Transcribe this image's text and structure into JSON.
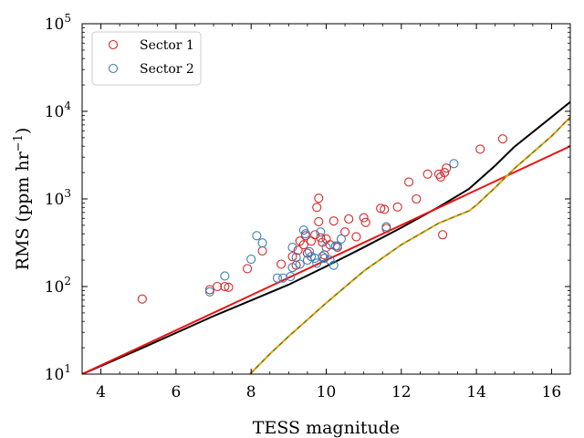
{
  "chart_data": {
    "type": "scatter",
    "title": "",
    "xlabel": "TESS magnitude",
    "ylabel": "RMS (ppm hr",
    "ylabel_sup": "−1",
    "ylabel_close": ")",
    "xlim": [
      3.5,
      16.5
    ],
    "ylim": [
      10,
      100000
    ],
    "yscale": "log",
    "grid": false,
    "legend_position": "top-left",
    "x_ticks": [
      {
        "value": 4,
        "label": "4"
      },
      {
        "value": 6,
        "label": "6"
      },
      {
        "value": 8,
        "label": "8"
      },
      {
        "value": 10,
        "label": "10"
      },
      {
        "value": 12,
        "label": "12"
      },
      {
        "value": 14,
        "label": "14"
      },
      {
        "value": 16,
        "label": "16"
      }
    ],
    "y_ticks": [
      {
        "value": 10,
        "base": "10",
        "exp": "1"
      },
      {
        "value": 100,
        "base": "10",
        "exp": "2"
      },
      {
        "value": 1000,
        "base": "10",
        "exp": "3"
      },
      {
        "value": 10000,
        "base": "10",
        "exp": "4"
      },
      {
        "value": 100000,
        "base": "10",
        "exp": "5"
      }
    ],
    "series": [
      {
        "name": "Sector 1",
        "color": "#d62728",
        "points": [
          [
            5.1,
            72
          ],
          [
            6.9,
            92
          ],
          [
            7.1,
            100
          ],
          [
            7.3,
            100
          ],
          [
            7.4,
            98
          ],
          [
            7.9,
            160
          ],
          [
            8.3,
            255
          ],
          [
            8.8,
            180
          ],
          [
            9.1,
            220
          ],
          [
            9.2,
            175
          ],
          [
            9.25,
            260
          ],
          [
            9.3,
            330
          ],
          [
            9.4,
            300
          ],
          [
            9.45,
            380
          ],
          [
            9.5,
            240
          ],
          [
            9.6,
            330
          ],
          [
            9.7,
            390
          ],
          [
            9.75,
            800
          ],
          [
            9.8,
            1020
          ],
          [
            9.8,
            550
          ],
          [
            9.85,
            360
          ],
          [
            9.9,
            320
          ],
          [
            9.95,
            230
          ],
          [
            10.0,
            350
          ],
          [
            10.1,
            300
          ],
          [
            10.2,
            560
          ],
          [
            10.3,
            280
          ],
          [
            10.5,
            420
          ],
          [
            10.6,
            590
          ],
          [
            10.8,
            370
          ],
          [
            11.0,
            610
          ],
          [
            11.05,
            540
          ],
          [
            11.45,
            780
          ],
          [
            11.55,
            760
          ],
          [
            11.6,
            460
          ],
          [
            11.9,
            810
          ],
          [
            12.2,
            1560
          ],
          [
            12.4,
            1000
          ],
          [
            12.7,
            1920
          ],
          [
            13.0,
            1920
          ],
          [
            13.05,
            1780
          ],
          [
            13.1,
            390
          ],
          [
            13.15,
            2000
          ],
          [
            13.2,
            2250
          ],
          [
            14.1,
            3700
          ],
          [
            14.7,
            4850
          ]
        ]
      },
      {
        "name": "Sector 2",
        "color": "#3a7fb8",
        "points": [
          [
            6.9,
            87
          ],
          [
            7.3,
            132
          ],
          [
            8.0,
            205
          ],
          [
            8.15,
            380
          ],
          [
            8.3,
            315
          ],
          [
            8.7,
            125
          ],
          [
            8.85,
            125
          ],
          [
            9.05,
            130
          ],
          [
            9.1,
            165
          ],
          [
            9.1,
            280
          ],
          [
            9.2,
            215
          ],
          [
            9.3,
            180
          ],
          [
            9.4,
            440
          ],
          [
            9.45,
            400
          ],
          [
            9.5,
            200
          ],
          [
            9.55,
            250
          ],
          [
            9.6,
            220
          ],
          [
            9.7,
            210
          ],
          [
            9.75,
            185
          ],
          [
            9.85,
            420
          ],
          [
            9.9,
            220
          ],
          [
            9.95,
            210
          ],
          [
            10.0,
            280
          ],
          [
            10.1,
            200
          ],
          [
            10.2,
            175
          ],
          [
            10.25,
            290
          ],
          [
            10.3,
            290
          ],
          [
            10.4,
            350
          ],
          [
            11.6,
            480
          ],
          [
            13.4,
            2530
          ]
        ]
      }
    ],
    "lines": [
      {
        "color": "#000000",
        "width": 2,
        "points": [
          [
            3.5,
            10
          ],
          [
            5,
            19
          ],
          [
            7,
            46
          ],
          [
            9,
            105
          ],
          [
            10,
            170
          ],
          [
            11,
            280
          ],
          [
            12,
            470
          ],
          [
            13,
            810
          ],
          [
            13.8,
            1300
          ],
          [
            14.5,
            2400
          ],
          [
            15,
            3900
          ],
          [
            16,
            8600
          ],
          [
            16.5,
            12800
          ]
        ]
      },
      {
        "color": "#ee1111",
        "width": 2,
        "points": [
          [
            3.5,
            10
          ],
          [
            16.5,
            4000
          ]
        ]
      },
      {
        "color": "#ff9500",
        "width": 2,
        "points": [
          [
            7.97,
            10
          ],
          [
            8.5,
            17
          ],
          [
            9,
            27
          ],
          [
            10,
            65
          ],
          [
            11,
            150
          ],
          [
            12,
            300
          ],
          [
            13,
            530
          ],
          [
            13.8,
            730
          ],
          [
            14,
            850
          ],
          [
            14.5,
            1350
          ],
          [
            15,
            2200
          ],
          [
            16,
            5200
          ],
          [
            16.5,
            8600
          ]
        ]
      },
      {
        "color": "#2f8f2f",
        "width": 1.2,
        "dash": "5,4",
        "points": [
          [
            7.97,
            10
          ],
          [
            8.5,
            17
          ],
          [
            9,
            27
          ],
          [
            10,
            65
          ],
          [
            11,
            150
          ],
          [
            12,
            300
          ],
          [
            13,
            530
          ],
          [
            13.8,
            730
          ],
          [
            14,
            850
          ],
          [
            14.5,
            1350
          ],
          [
            15,
            2200
          ],
          [
            16,
            5200
          ],
          [
            16.5,
            8600
          ]
        ]
      }
    ]
  }
}
